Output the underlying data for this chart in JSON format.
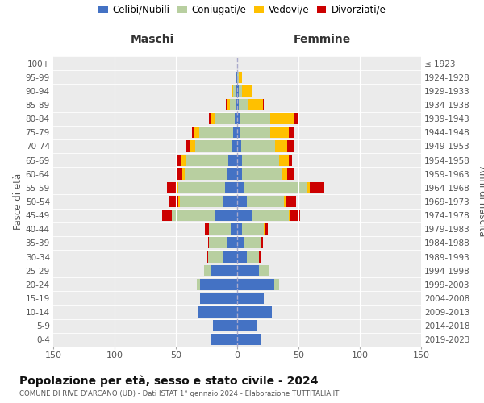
{
  "age_groups": [
    "0-4",
    "5-9",
    "10-14",
    "15-19",
    "20-24",
    "25-29",
    "30-34",
    "35-39",
    "40-44",
    "45-49",
    "50-54",
    "55-59",
    "60-64",
    "65-69",
    "70-74",
    "75-79",
    "80-84",
    "85-89",
    "90-94",
    "95-99",
    "100+"
  ],
  "birth_years": [
    "2019-2023",
    "2014-2018",
    "2009-2013",
    "2004-2008",
    "1999-2003",
    "1994-1998",
    "1989-1993",
    "1984-1988",
    "1979-1983",
    "1974-1978",
    "1969-1973",
    "1964-1968",
    "1959-1963",
    "1954-1958",
    "1949-1953",
    "1944-1948",
    "1939-1943",
    "1934-1938",
    "1929-1933",
    "1924-1928",
    "≤ 1923"
  ],
  "males": {
    "celibi": [
      22,
      20,
      32,
      30,
      30,
      22,
      12,
      8,
      5,
      18,
      12,
      10,
      8,
      7,
      4,
      3,
      2,
      1,
      1,
      1,
      0
    ],
    "coniugati": [
      0,
      0,
      0,
      0,
      3,
      5,
      12,
      15,
      18,
      35,
      35,
      38,
      35,
      35,
      30,
      28,
      16,
      5,
      2,
      0,
      0
    ],
    "vedovi": [
      0,
      0,
      0,
      0,
      0,
      0,
      0,
      0,
      0,
      0,
      1,
      1,
      2,
      4,
      5,
      4,
      3,
      2,
      1,
      0,
      0
    ],
    "divorziati": [
      0,
      0,
      0,
      0,
      0,
      0,
      1,
      1,
      3,
      8,
      7,
      8,
      5,
      3,
      3,
      2,
      2,
      1,
      0,
      0,
      0
    ]
  },
  "females": {
    "nubili": [
      20,
      16,
      28,
      22,
      30,
      18,
      8,
      5,
      4,
      12,
      8,
      5,
      4,
      4,
      3,
      2,
      2,
      1,
      1,
      0,
      0
    ],
    "coniugate": [
      0,
      0,
      0,
      0,
      4,
      8,
      10,
      14,
      18,
      30,
      30,
      52,
      32,
      30,
      28,
      25,
      25,
      8,
      3,
      1,
      0
    ],
    "vedove": [
      0,
      0,
      0,
      0,
      0,
      0,
      0,
      0,
      1,
      1,
      2,
      2,
      5,
      8,
      10,
      15,
      20,
      12,
      8,
      3,
      0
    ],
    "divorziate": [
      0,
      0,
      0,
      0,
      0,
      0,
      2,
      2,
      2,
      8,
      8,
      12,
      5,
      3,
      5,
      5,
      3,
      1,
      0,
      0,
      0
    ]
  },
  "colors": {
    "celibi_nubili": "#4472c4",
    "coniugati": "#b8cfa0",
    "vedovi": "#ffc000",
    "divorziati": "#cc0000"
  },
  "title": "Popolazione per età, sesso e stato civile - 2024",
  "subtitle": "COMUNE DI RIVE D'ARCANO (UD) - Dati ISTAT 1° gennaio 2024 - Elaborazione TUTTITALIA.IT",
  "ylabel_left": "Fasce di età",
  "ylabel_right": "Anni di nascita",
  "xlabel_left": "Maschi",
  "xlabel_right": "Femmine",
  "xlim": 150,
  "legend_labels": [
    "Celibi/Nubili",
    "Coniugati/e",
    "Vedovi/e",
    "Divorziati/e"
  ]
}
